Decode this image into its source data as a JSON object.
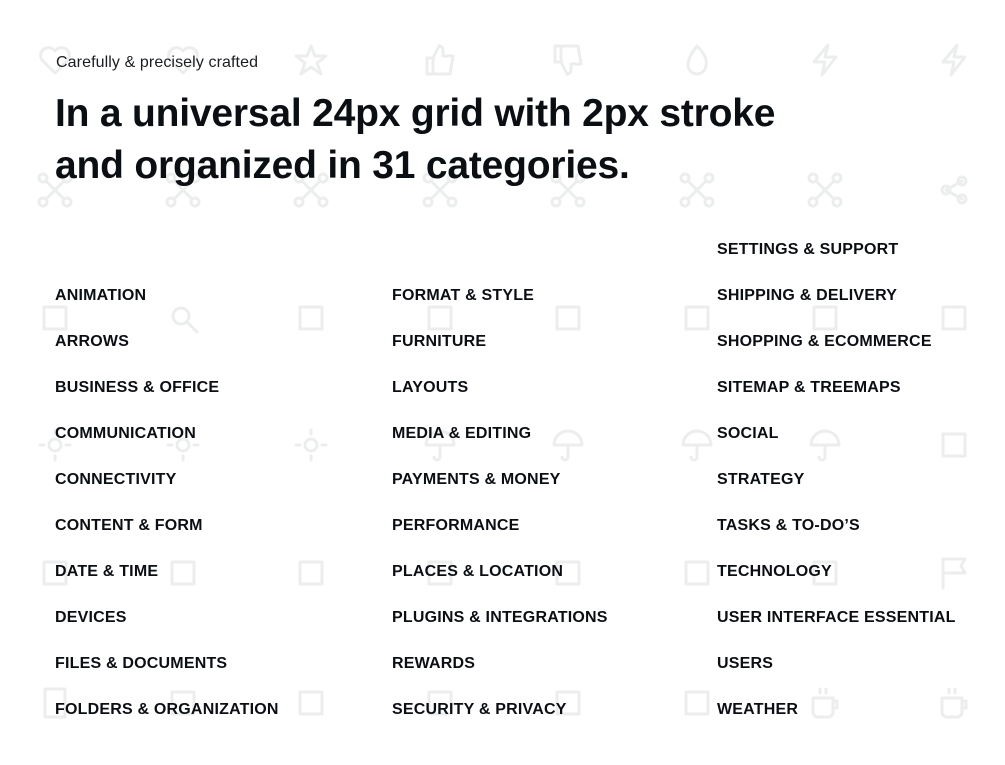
{
  "eyebrow": "Carefully & precisely crafted",
  "headline": {
    "line1": "In a universal 24px grid with 2px stroke",
    "line2": "and organized in 31 categories."
  },
  "colors": {
    "text": "#0b0f14",
    "background_icons": "#eceeee"
  },
  "background_icons": [
    "heart",
    "heart",
    "star",
    "thumbs-up",
    "thumbs-down",
    "flame",
    "bolt",
    "bolt",
    "network",
    "network",
    "network",
    "network",
    "network",
    "network",
    "network",
    "share",
    "focus",
    "search",
    "focus",
    "target",
    "crosshair",
    "axis",
    "cube",
    "warning",
    "sun",
    "sun",
    "sun",
    "umbrella",
    "umbrella",
    "umbrella",
    "umbrella",
    "waves",
    "clock",
    "signature",
    "pen",
    "calendar",
    "pin",
    "flask",
    "bulb",
    "flag",
    "tablet",
    "tree",
    "rocket",
    "leaf",
    "rocket",
    "rocket",
    "cup",
    "cup"
  ],
  "categories": {
    "col1": [
      "ANIMATION",
      "ARROWS",
      "BUSINESS & OFFICE",
      "COMMUNICATION",
      "CONNECTIVITY",
      "CONTENT & FORM",
      "DATE & TIME",
      "DEVICES",
      "FILES & DOCUMENTS",
      "FOLDERS & ORGANIZATION"
    ],
    "col2": [
      "FORMAT & STYLE",
      "FURNITURE",
      "LAYOUTS",
      "MEDIA & EDITING",
      "PAYMENTS & MONEY",
      "PERFORMANCE",
      "PLACES & LOCATION",
      "PLUGINS & INTEGRATIONS",
      "REWARDS",
      "SECURITY & PRIVACY"
    ],
    "col3": [
      "SETTINGS & SUPPORT",
      "SHIPPING & DELIVERY",
      "SHOPPING &  ECOMMERCE",
      "SITEMAP & TREEMAPS",
      "SOCIAL",
      "STRATEGY",
      "TASKS & TO-DO’S",
      "TECHNOLOGY",
      "USER INTERFACE ESSENTIAL",
      "USERS",
      "WEATHER"
    ]
  }
}
